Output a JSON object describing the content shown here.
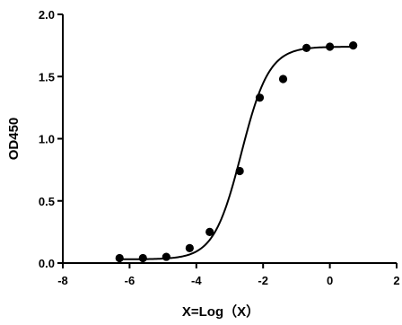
{
  "chart_data": {
    "type": "scatter",
    "title": "",
    "xlabel": "X=Log（X）",
    "ylabel": "OD450",
    "xlim": [
      -8,
      2
    ],
    "ylim": [
      0,
      2
    ],
    "xticks": [
      -8,
      -6,
      -4,
      -2,
      0,
      2
    ],
    "yticks": [
      0.0,
      0.5,
      1.0,
      1.5,
      2.0
    ],
    "grid": false,
    "legend": "none",
    "points": {
      "x": [
        -6.3,
        -5.6,
        -4.9,
        -4.2,
        -3.6,
        -2.7,
        -2.1,
        -1.4,
        -0.7,
        0.0,
        0.7
      ],
      "y": [
        0.04,
        0.04,
        0.05,
        0.12,
        0.25,
        0.74,
        1.33,
        1.48,
        1.73,
        1.74,
        1.75
      ]
    },
    "fit_curve": {
      "type": "four-parameter-logistic",
      "bottom": 0.03,
      "top": 1.74,
      "logEC50": -2.65,
      "hillslope": 1.05
    },
    "colors": {
      "points": "#000000",
      "curve": "#000000",
      "axes": "#000000"
    }
  }
}
